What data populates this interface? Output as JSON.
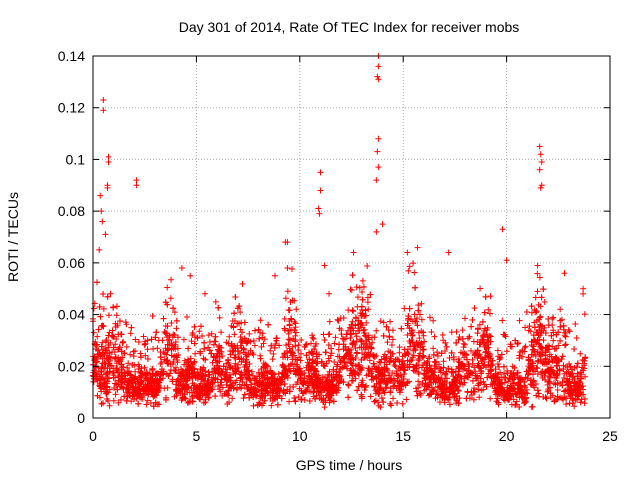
{
  "chart_data": {
    "type": "scatter",
    "title": "Day 301 of 2014, Rate Of TEC Index for receiver mobs",
    "xlabel": "GPS time / hours",
    "ylabel": "ROTI / TECUs",
    "xlim": [
      0,
      25
    ],
    "ylim": [
      0,
      0.14
    ],
    "xticks": [
      0,
      5,
      10,
      15,
      20,
      25
    ],
    "yticks": [
      0,
      0.02,
      0.04,
      0.06,
      0.08,
      0.1,
      0.12,
      0.14
    ],
    "xtick_labels": [
      "0",
      "5",
      "10",
      "15",
      "20",
      "25"
    ],
    "ytick_labels": [
      "0",
      "0.02",
      "0.04",
      "0.06",
      "0.08",
      "0.1",
      "0.12",
      "0.14"
    ],
    "grid": true,
    "marker": "+",
    "color": "#ff0000",
    "data_range_x": [
      0,
      23.8
    ],
    "density_note": "thousands of points; bulk between 0.005 and 0.03 TECU",
    "notable_points": [
      {
        "x": 0.5,
        "y": 0.123
      },
      {
        "x": 0.5,
        "y": 0.119
      },
      {
        "x": 0.75,
        "y": 0.101
      },
      {
        "x": 0.75,
        "y": 0.099
      },
      {
        "x": 0.7,
        "y": 0.09
      },
      {
        "x": 0.7,
        "y": 0.089
      },
      {
        "x": 0.35,
        "y": 0.086
      },
      {
        "x": 0.4,
        "y": 0.08
      },
      {
        "x": 0.45,
        "y": 0.076
      },
      {
        "x": 0.6,
        "y": 0.071
      },
      {
        "x": 0.3,
        "y": 0.065
      },
      {
        "x": 2.1,
        "y": 0.092
      },
      {
        "x": 2.1,
        "y": 0.09
      },
      {
        "x": 4.3,
        "y": 0.058
      },
      {
        "x": 4.7,
        "y": 0.055
      },
      {
        "x": 9.3,
        "y": 0.068
      },
      {
        "x": 9.4,
        "y": 0.068
      },
      {
        "x": 9.4,
        "y": 0.058
      },
      {
        "x": 8.8,
        "y": 0.055
      },
      {
        "x": 11.0,
        "y": 0.095
      },
      {
        "x": 11.0,
        "y": 0.088
      },
      {
        "x": 10.9,
        "y": 0.081
      },
      {
        "x": 10.95,
        "y": 0.079
      },
      {
        "x": 11.2,
        "y": 0.059
      },
      {
        "x": 12.6,
        "y": 0.064
      },
      {
        "x": 13.8,
        "y": 0.14
      },
      {
        "x": 13.8,
        "y": 0.136
      },
      {
        "x": 13.75,
        "y": 0.132
      },
      {
        "x": 13.8,
        "y": 0.131
      },
      {
        "x": 13.8,
        "y": 0.108
      },
      {
        "x": 13.75,
        "y": 0.103
      },
      {
        "x": 13.8,
        "y": 0.097
      },
      {
        "x": 13.7,
        "y": 0.092
      },
      {
        "x": 13.7,
        "y": 0.072
      },
      {
        "x": 14.0,
        "y": 0.075
      },
      {
        "x": 15.2,
        "y": 0.064
      },
      {
        "x": 17.2,
        "y": 0.064
      },
      {
        "x": 19.8,
        "y": 0.073
      },
      {
        "x": 20.0,
        "y": 0.061
      },
      {
        "x": 21.6,
        "y": 0.105
      },
      {
        "x": 21.65,
        "y": 0.102
      },
      {
        "x": 21.7,
        "y": 0.099
      },
      {
        "x": 21.6,
        "y": 0.096
      },
      {
        "x": 21.7,
        "y": 0.09
      },
      {
        "x": 21.65,
        "y": 0.089
      },
      {
        "x": 21.5,
        "y": 0.059
      },
      {
        "x": 22.8,
        "y": 0.056
      },
      {
        "x": 23.7,
        "y": 0.05
      },
      {
        "x": 23.7,
        "y": 0.048
      }
    ]
  }
}
